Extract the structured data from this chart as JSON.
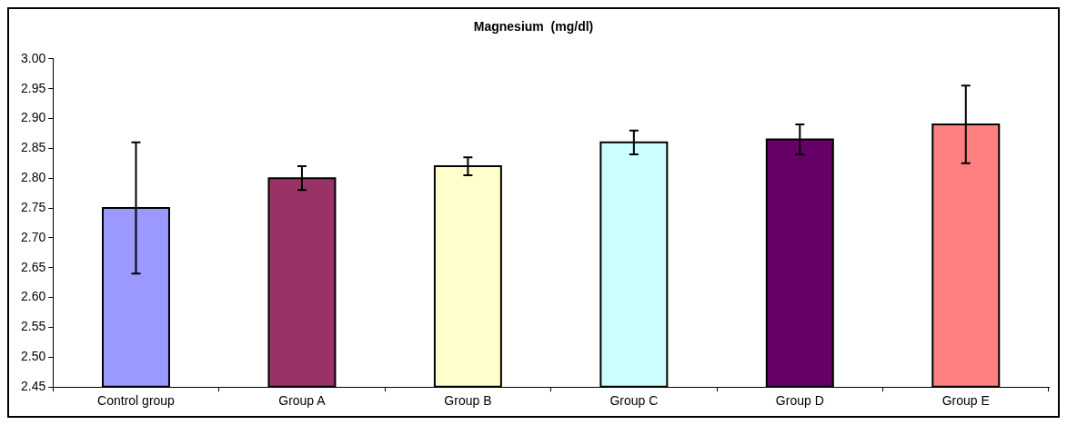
{
  "chart_data": {
    "type": "bar",
    "title": "Magnesium  (mg/dl)",
    "categories": [
      "Control group",
      "Group A",
      "Group B",
      "Group C",
      "Group D",
      "Group E"
    ],
    "values": [
      2.75,
      2.8,
      2.82,
      2.86,
      2.865,
      2.89
    ],
    "errors": [
      0.11,
      0.02,
      0.015,
      0.02,
      0.025,
      0.065
    ],
    "colors": [
      "#9999ff",
      "#993366",
      "#ffffcc",
      "#ccffff",
      "#660066",
      "#ff8080"
    ],
    "ylim": [
      2.45,
      3.0
    ],
    "yticks": [
      {
        "value": 2.45,
        "label": "2.45"
      },
      {
        "value": 2.5,
        "label": "2.50"
      },
      {
        "value": 2.55,
        "label": "2.55"
      },
      {
        "value": 2.6,
        "label": "2.60"
      },
      {
        "value": 2.65,
        "label": "2.65"
      },
      {
        "value": 2.7,
        "label": "2.70"
      },
      {
        "value": 2.75,
        "label": "2.75"
      },
      {
        "value": 2.8,
        "label": "2.80"
      },
      {
        "value": 2.85,
        "label": "2.85"
      },
      {
        "value": 2.9,
        "label": "2.90"
      },
      {
        "value": 2.95,
        "label": "2.95"
      },
      {
        "value": 3.0,
        "label": "3.00"
      }
    ],
    "grid": false,
    "legend": false
  }
}
